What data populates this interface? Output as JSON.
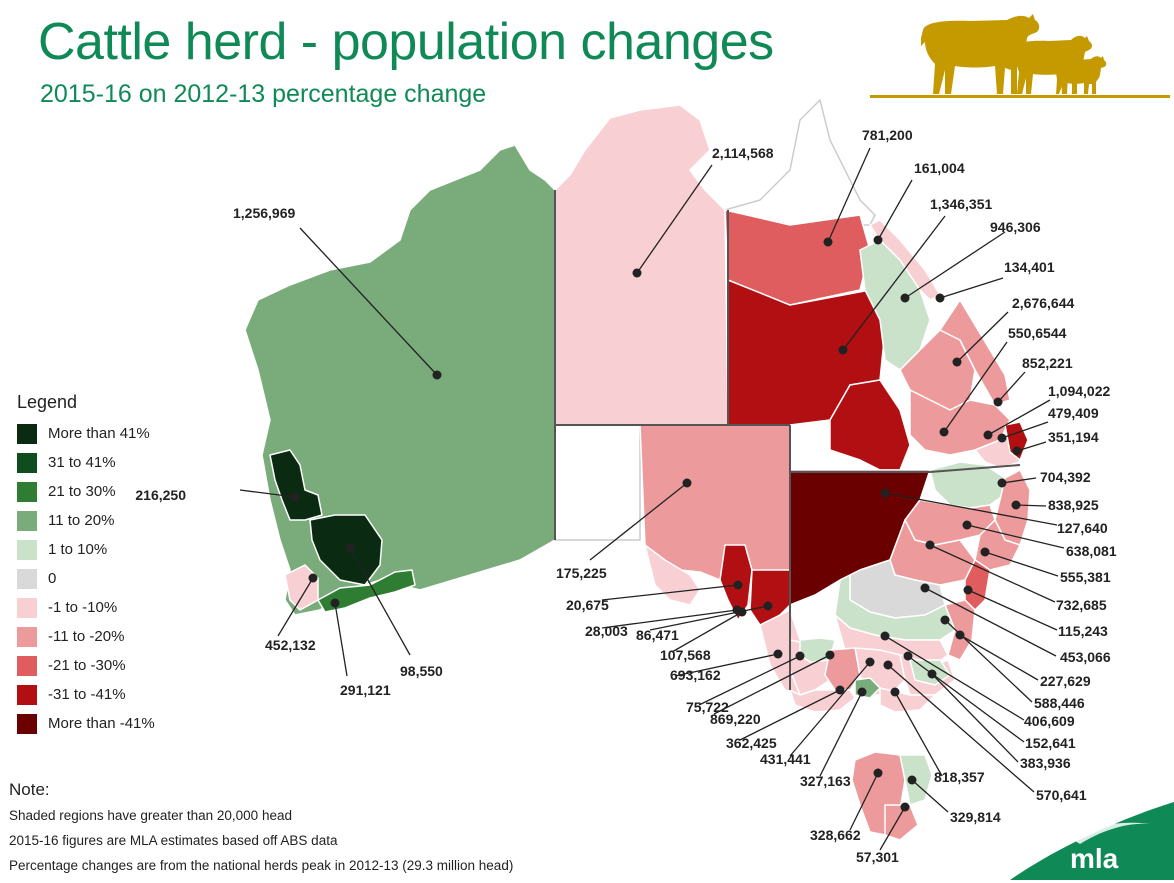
{
  "header": {
    "title": "Cattle herd - population changes",
    "subtitle": "2015-16 on 2012-13 percentage change"
  },
  "legend": {
    "title": "Legend",
    "items": [
      {
        "label": "More than 41%",
        "color": "#0b2a12"
      },
      {
        "label": "31 to 41%",
        "color": "#0f4d1e"
      },
      {
        "label": "21 to 30%",
        "color": "#2e7d32"
      },
      {
        "label": "11 to 20%",
        "color": "#7aab7a"
      },
      {
        "label": "1 to 10%",
        "color": "#c9e2c9"
      },
      {
        "label": "0",
        "color": "#d9d9d9"
      },
      {
        "label": "-1 to -10%",
        "color": "#f8d0d3"
      },
      {
        "label": "-11 to -20%",
        "color": "#ec9a9b"
      },
      {
        "label": "-21 to -30%",
        "color": "#e05d5f"
      },
      {
        "label": "-31 to -41%",
        "color": "#b10f12"
      },
      {
        "label": "More than -41%",
        "color": "#6b0000"
      }
    ]
  },
  "regions": {
    "labels": [
      "2,114,568",
      "781,200",
      "161,004",
      "1,346,351",
      "946,306",
      "134,401",
      "2,676,644",
      "550,6544",
      "852,221",
      "1,094,022",
      "479,409",
      "351,194",
      "704,392",
      "838,925",
      "127,640",
      "638,081",
      "555,381",
      "732,685",
      "115,243",
      "453,066",
      "227,629",
      "588,446",
      "406,609",
      "152,641",
      "383,936",
      "570,641",
      "818,357",
      "329,814",
      "57,301",
      "328,662",
      "327,163",
      "431,441",
      "362,425",
      "869,220",
      "75,722",
      "693,162",
      "107,568",
      "86,471",
      "28,003",
      "20,675",
      "175,225",
      "1,256,969",
      "216,250",
      "452,132",
      "291,121",
      "98,550"
    ]
  },
  "note": {
    "title": "Note:",
    "lines": [
      "Shaded regions have greater than 20,000 head",
      "2015-16 figures are MLA estimates based off ABS data",
      "Percentage changes are from the national herds peak in 2012-13 (29.3 million head)"
    ]
  },
  "brand": {
    "logo_text": "mla",
    "accent_color": "#0f8a57",
    "cattle_color": "#c49a00"
  }
}
